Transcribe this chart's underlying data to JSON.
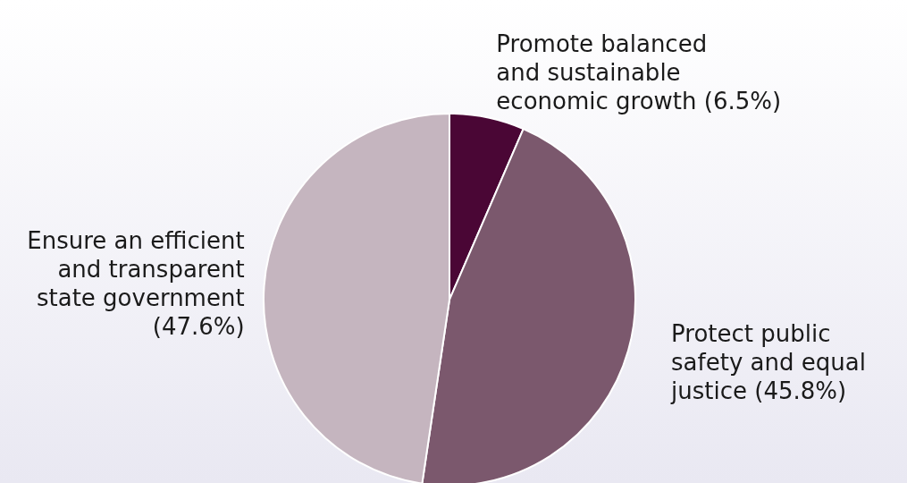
{
  "chart_data": {
    "type": "pie",
    "categories": [
      "Promote balanced and sustainable economic growth",
      "Protect public safety and equal justice",
      "Ensure an efficient and transparent state government"
    ],
    "values": [
      6.5,
      45.8,
      47.6
    ],
    "colors": [
      "#4a0635",
      "#7b586d",
      "#c5b5bf"
    ],
    "value_labels": [
      "(6.5%)",
      "(45.8%)",
      "(47.6%)"
    ],
    "legend": false
  }
}
